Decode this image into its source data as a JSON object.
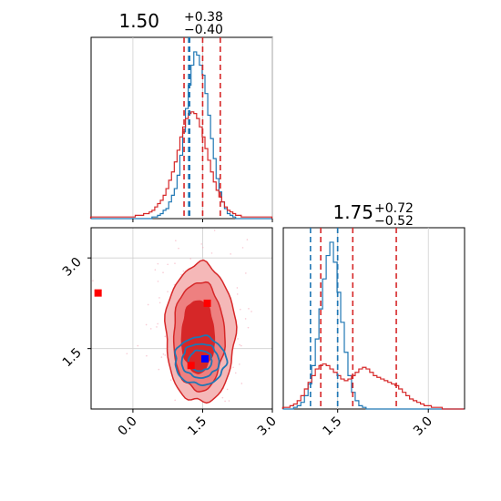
{
  "chart_data": [
    {
      "panel": "top-left",
      "type": "histogram",
      "title": {
        "value": "1.50",
        "plus": "+0.38",
        "minus": "−0.40"
      },
      "xlim": [
        -0.9,
        3.0
      ],
      "x": [
        -0.88,
        -0.82,
        -0.76,
        -0.7,
        -0.64,
        -0.58,
        -0.52,
        -0.46,
        -0.4,
        -0.34,
        -0.28,
        -0.22,
        -0.16,
        -0.1,
        -0.04,
        0.02,
        0.08,
        0.14,
        0.2,
        0.26,
        0.32,
        0.38,
        0.44,
        0.5,
        0.56,
        0.62,
        0.68,
        0.74,
        0.8,
        0.86,
        0.92,
        0.98,
        1.04,
        1.1,
        1.16,
        1.22,
        1.28,
        1.34,
        1.4,
        1.46,
        1.52,
        1.58,
        1.64,
        1.7,
        1.76,
        1.82,
        1.88,
        1.94,
        2.0,
        2.06,
        2.12,
        2.18,
        2.24,
        2.3,
        2.36,
        2.42,
        2.48,
        2.54,
        2.6,
        2.66,
        2.72,
        2.78,
        2.84,
        2.9,
        2.96
      ],
      "series": [
        {
          "color": "#1f77b4",
          "values": [
            0,
            0,
            0,
            0,
            0,
            0,
            0,
            0,
            0,
            0,
            0,
            0,
            0,
            0,
            0,
            0,
            0,
            0,
            0,
            0,
            0,
            0,
            1,
            1,
            2,
            3,
            5,
            6,
            10,
            14,
            18,
            26,
            38,
            52,
            66,
            80,
            92,
            100,
            98,
            92,
            86,
            75,
            62,
            48,
            36,
            24,
            16,
            10,
            6,
            3,
            2,
            1,
            0,
            0,
            0,
            0,
            0,
            0,
            0,
            0,
            0,
            0,
            0,
            0,
            0
          ]
        },
        {
          "color": "#d62728",
          "values": [
            1,
            1,
            1,
            1,
            1,
            1,
            1,
            1,
            1,
            1,
            1,
            1,
            1,
            1,
            1,
            1,
            2,
            2,
            2,
            3,
            3,
            4,
            5,
            7,
            9,
            11,
            14,
            18,
            23,
            28,
            34,
            41,
            49,
            55,
            60,
            63,
            64,
            63,
            60,
            55,
            49,
            42,
            35,
            28,
            22,
            17,
            13,
            10,
            7,
            5,
            4,
            3,
            2,
            2,
            1,
            1,
            1,
            1,
            1,
            1,
            1,
            1,
            1,
            1,
            1
          ]
        }
      ],
      "quantiles": [
        {
          "color": "#d62728",
          "values": [
            1.1,
            1.5,
            1.88
          ]
        },
        {
          "color": "#1f77b4",
          "values": [
            1.2,
            1.22,
            1.22
          ]
        }
      ],
      "grid": true
    },
    {
      "panel": "bottom-right",
      "type": "histogram",
      "title": {
        "value": "1.75",
        "plus": "+0.72",
        "minus": "−0.52"
      },
      "xlim": [
        0.6,
        3.6
      ],
      "xticks": [
        "1.5",
        "3.0"
      ],
      "xtick_values": [
        1.5,
        3.0
      ],
      "x": [
        0.62,
        0.68,
        0.74,
        0.8,
        0.86,
        0.92,
        0.98,
        1.04,
        1.1,
        1.16,
        1.22,
        1.28,
        1.34,
        1.4,
        1.46,
        1.52,
        1.58,
        1.64,
        1.7,
        1.76,
        1.82,
        1.88,
        1.94,
        2.0,
        2.06,
        2.12,
        2.18,
        2.24,
        2.3,
        2.36,
        2.42,
        2.48,
        2.54,
        2.6,
        2.66,
        2.72,
        2.78,
        2.84,
        2.9,
        2.96,
        3.02,
        3.08,
        3.14,
        3.2,
        3.26,
        3.32,
        3.38,
        3.44,
        3.5,
        3.56
      ],
      "series": [
        {
          "color": "#1f77b4",
          "values": [
            0,
            0,
            0,
            1,
            2,
            4,
            8,
            15,
            26,
            42,
            60,
            78,
            92,
            100,
            88,
            70,
            52,
            34,
            20,
            10,
            5,
            2,
            1,
            0,
            0,
            0,
            0,
            0,
            0,
            0,
            0,
            0,
            0,
            0,
            0,
            0,
            0,
            0,
            0,
            0,
            0,
            0,
            0,
            0,
            0,
            0,
            0,
            0,
            0,
            0
          ]
        },
        {
          "color": "#d62728",
          "values": [
            1,
            1,
            2,
            3,
            5,
            8,
            12,
            16,
            20,
            24,
            26,
            27,
            26,
            24,
            22,
            20,
            18,
            17,
            18,
            20,
            22,
            24,
            25,
            24,
            22,
            20,
            19,
            18,
            17,
            16,
            15,
            14,
            12,
            10,
            8,
            6,
            5,
            4,
            3,
            2,
            2,
            1,
            1,
            1,
            0,
            0,
            0,
            0,
            0,
            0
          ]
        }
      ],
      "quantiles": [
        {
          "color": "#d62728",
          "values": [
            1.22,
            1.75,
            2.47
          ]
        },
        {
          "color": "#1f77b4",
          "values": [
            1.05,
            1.5,
            1.5
          ]
        }
      ],
      "grid": true
    },
    {
      "panel": "bottom-left",
      "type": "contour",
      "xlim": [
        -0.9,
        3.0
      ],
      "ylim": [
        0.5,
        3.5
      ],
      "xticks": [
        "0.0",
        "1.5",
        "3.0"
      ],
      "xtick_values": [
        0.0,
        1.5,
        3.0
      ],
      "yticks": [
        "1.5",
        "3.0"
      ],
      "ytick_values": [
        1.5,
        3.0
      ],
      "red_levels": [
        {
          "fill": "#f5b8b8",
          "stroke": "#d62728",
          "cx": 1.45,
          "cy": 1.75,
          "rx": 0.75,
          "ry": 1.15
        },
        {
          "fill": "#ee8080",
          "stroke": "#d62728",
          "cx": 1.42,
          "cy": 1.7,
          "rx": 0.55,
          "ry": 0.9
        },
        {
          "fill": "#d62728",
          "stroke": "#d62728",
          "cx": 1.4,
          "cy": 1.7,
          "rx": 0.35,
          "ry": 0.6
        }
      ],
      "blue_levels": [
        {
          "stroke": "#1f77b4",
          "cx": 1.45,
          "cy": 1.3,
          "rx": 0.55,
          "ry": 0.4
        },
        {
          "stroke": "#1f77b4",
          "cx": 1.45,
          "cy": 1.3,
          "rx": 0.4,
          "ry": 0.28
        },
        {
          "stroke": "#1f77b4",
          "cx": 1.45,
          "cy": 1.3,
          "rx": 0.25,
          "ry": 0.17
        }
      ],
      "markers": [
        {
          "color": "#ff0000",
          "x": -0.75,
          "y": 2.42
        },
        {
          "color": "#ff0000",
          "x": 1.6,
          "y": 2.25
        },
        {
          "color": "#ff0000",
          "x": 1.25,
          "y": 1.22
        },
        {
          "color": "#0000ff",
          "x": 1.55,
          "y": 1.33
        }
      ],
      "grid": true
    }
  ]
}
